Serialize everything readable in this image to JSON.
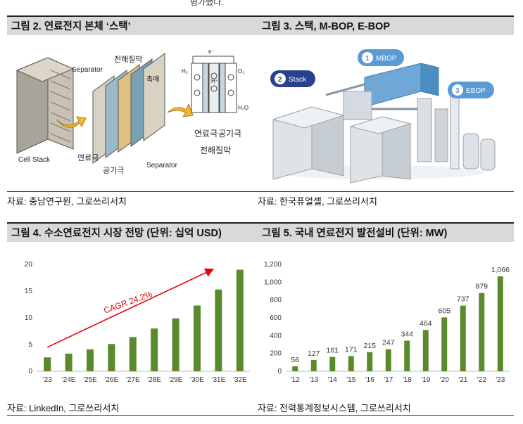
{
  "fragment": "평가했다.",
  "fig2": {
    "title": "그림 2. 연료전지 본체 ‘스택’",
    "labels": {
      "separator_top": "Separator",
      "electrolyte_top": "전해질막",
      "catalyst": "촉매",
      "fuel_electrode": "연료극",
      "air_electrode": "공기극",
      "separator_bottom": "Separator",
      "cell_stack": "Cell Stack",
      "right_fuel": "연료극",
      "right_air": "공기극",
      "right_electrolyte": "전해질막",
      "e_label": "e⁻",
      "h_label": "H⁺",
      "h2_label": "H₂",
      "o2_label": "O₂",
      "h2o_label": "H₂O"
    },
    "source": "자료: 충남연구원, 그로쓰리서치"
  },
  "fig3": {
    "title": "그림 3. 스택, M-BOP, E-BOP",
    "badges": [
      {
        "num": "2",
        "text": "Stack"
      },
      {
        "num": "1",
        "text": "MBOP"
      },
      {
        "num": "3",
        "text": "EBOP"
      }
    ],
    "source": "자료: 한국퓨얼셀, 그로쓰리서치"
  },
  "fig4": {
    "title": "그림 4. 수소연료전지 시장 전망 (단위: 십억 USD)",
    "annotation": "CAGR 24.2%",
    "source": "자료: LinkedIn, 그로쓰리서치"
  },
  "fig5": {
    "title": "그림 5. 국내 연료전지 발전설비 (단위: MW)",
    "source": "자료: 전력통계정보시스템, 그로쓰리서치"
  },
  "colors": {
    "bar": "#5a8a2b",
    "arrow": "#e8000b",
    "header": "#d9d9d9"
  },
  "chart_data": [
    {
      "type": "bar",
      "categories": [
        "'23",
        "'24E",
        "'25E",
        "'26E",
        "'27E",
        "'28E",
        "'29E",
        "'30E",
        "'31E",
        "'32E"
      ],
      "values": [
        2.6,
        3.3,
        4.1,
        5.1,
        6.4,
        8.0,
        9.9,
        12.3,
        15.3,
        19.0
      ],
      "ylim": [
        0,
        20
      ],
      "yticks": [
        "0",
        "5",
        "10",
        "15",
        "20"
      ],
      "grid": false
    },
    {
      "type": "bar",
      "categories": [
        "'12",
        "'13",
        "'14",
        "'15",
        "'16",
        "'17",
        "'18",
        "'19",
        "'20",
        "'21",
        "'22",
        "'23"
      ],
      "values": [
        56,
        127,
        161,
        171,
        215,
        247,
        344,
        464,
        605,
        737,
        879,
        1066
      ],
      "data_labels": [
        "56",
        "127",
        "161",
        "171",
        "215",
        "247",
        "344",
        "464",
        "605",
        "737",
        "879",
        "1,066"
      ],
      "ylim": [
        0,
        1200
      ],
      "yticks": [
        "0",
        "200",
        "400",
        "600",
        "800",
        "1,000",
        "1,200"
      ],
      "grid": false
    }
  ]
}
